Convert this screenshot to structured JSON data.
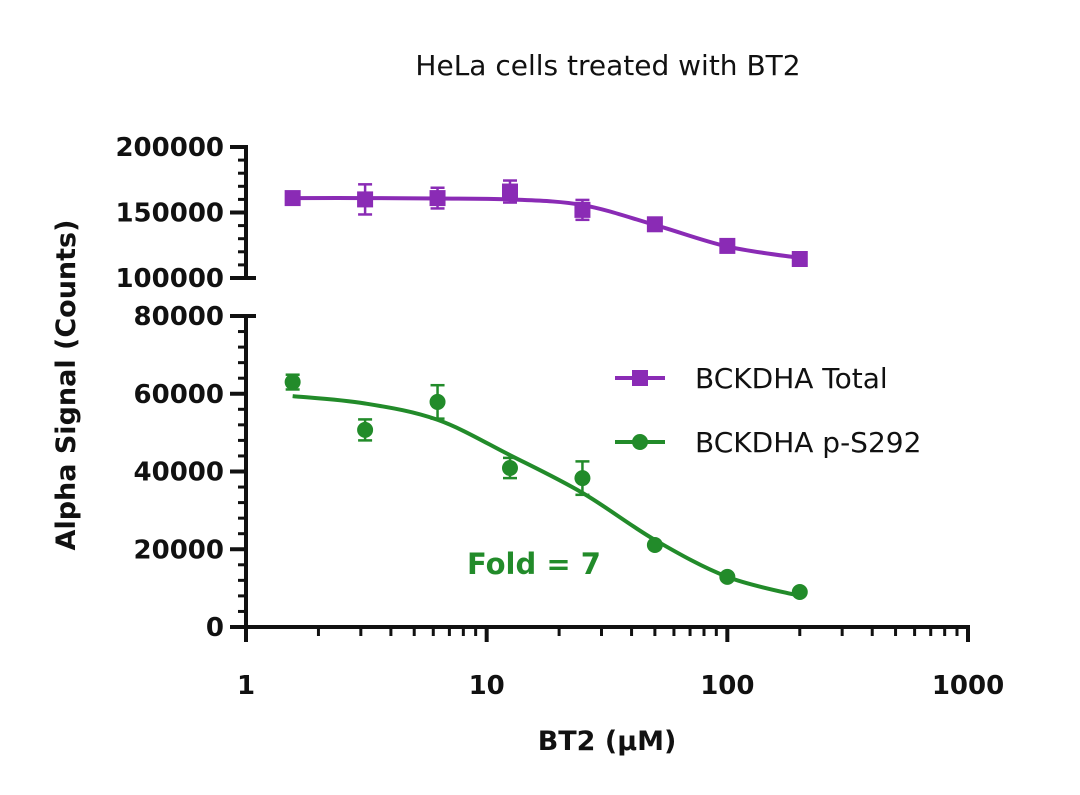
{
  "chart_data": {
    "type": "scatter",
    "title": "HeLa cells treated with BT2",
    "xlabel": "BT2 (µM)",
    "ylabel": "Alpha Signal (Counts)",
    "x_scale": "log",
    "xlim": [
      1,
      1000
    ],
    "x_ticks": [
      "1",
      "10",
      "100",
      "1000"
    ],
    "y_axis_break": true,
    "y_segments": [
      {
        "ylim": [
          0,
          80000
        ],
        "ticks": [
          "0",
          "20000",
          "40000",
          "60000",
          "80000"
        ]
      },
      {
        "ylim": [
          100000,
          200000
        ],
        "ticks": [
          "100000",
          "150000",
          "200000"
        ]
      }
    ],
    "grid": false,
    "legend_position": "right-center",
    "x": [
      1.5625,
      3.125,
      6.25,
      12.5,
      25,
      50,
      100,
      200
    ],
    "series": [
      {
        "name": "BCKDHA Total",
        "color": "#8a2bb5",
        "marker": "square",
        "values": [
          161000,
          160000,
          161000,
          166000,
          152000,
          141000,
          124500,
          114500
        ],
        "errors": [
          2000,
          11500,
          7900,
          8400,
          7600,
          2000,
          2000,
          2000
        ],
        "fit": {
          "x": [
            1.5625,
            3.125,
            6.25,
            12.5,
            25,
            50,
            100,
            200
          ],
          "y": [
            161000,
            161000,
            160700,
            160000,
            155700,
            140500,
            124000,
            115300
          ]
        }
      },
      {
        "name": "BCKDHA p-S292",
        "color": "#228b2a",
        "marker": "circle",
        "values": [
          63000,
          50700,
          57900,
          40900,
          38300,
          21100,
          12900,
          9000
        ],
        "errors": [
          1900,
          2700,
          4300,
          2600,
          4300,
          0,
          0,
          0
        ],
        "fit": {
          "x": [
            1.5625,
            3.125,
            6.25,
            12.5,
            25,
            50,
            100,
            200
          ],
          "y": [
            59400,
            57500,
            53300,
            44200,
            34500,
            22400,
            12900,
            8000
          ]
        }
      }
    ],
    "annotations": [
      {
        "text": "Fold = 7",
        "color": "#228b2a"
      }
    ]
  }
}
